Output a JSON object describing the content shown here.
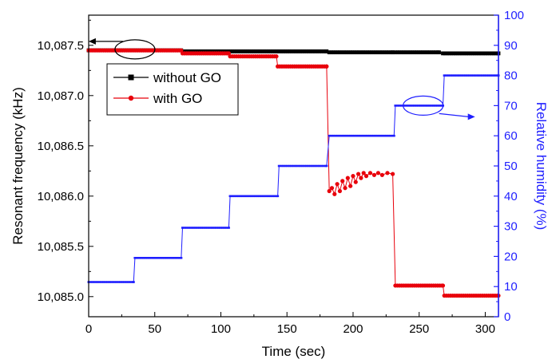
{
  "chart_data": {
    "type": "line",
    "xlabel": "Time (sec)",
    "ylabel_left": "Resonant frequency (kHz)",
    "ylabel_right": "Relative humidity (%)",
    "xlim": [
      0,
      310
    ],
    "ylim_left": [
      10084.8,
      10087.8
    ],
    "ylim_right": [
      0,
      100
    ],
    "x_ticks": [
      0,
      50,
      100,
      150,
      200,
      250,
      300
    ],
    "y_left_ticks": [
      {
        "v": 10085.0,
        "label": "10,085.0"
      },
      {
        "v": 10085.5,
        "label": "10,085.5"
      },
      {
        "v": 10086.0,
        "label": "10,086.0"
      },
      {
        "v": 10086.5,
        "label": "10,086.5"
      },
      {
        "v": 10087.0,
        "label": "10,087.0"
      },
      {
        "v": 10087.5,
        "label": "10,087.5"
      }
    ],
    "y_right_ticks": [
      0,
      10,
      20,
      30,
      40,
      50,
      60,
      70,
      80,
      90,
      100
    ],
    "legend_position": "upper-left",
    "series": [
      {
        "name": "without GO",
        "axis": "left",
        "color": "#000000",
        "marker": "square",
        "points": [
          [
            0,
            10087.45
          ],
          [
            70,
            10087.45
          ],
          [
            72,
            10087.44
          ],
          [
            180,
            10087.44
          ],
          [
            182,
            10087.43
          ],
          [
            230,
            10087.43
          ],
          [
            232,
            10087.43
          ],
          [
            265,
            10087.43
          ],
          [
            268,
            10087.42
          ],
          [
            310,
            10087.42
          ]
        ]
      },
      {
        "name": "with  GO",
        "axis": "left",
        "color": "#e8000b",
        "marker": "circle",
        "points": [
          [
            0,
            10087.45
          ],
          [
            70,
            10087.45
          ],
          [
            71,
            10087.42
          ],
          [
            106,
            10087.42
          ],
          [
            107,
            10087.39
          ],
          [
            142,
            10087.39
          ],
          [
            143,
            10087.29
          ],
          [
            180,
            10087.29
          ],
          [
            182,
            10086.05
          ],
          [
            184,
            10086.08
          ],
          [
            186,
            10086.02
          ],
          [
            188,
            10086.12
          ],
          [
            190,
            10086.05
          ],
          [
            192,
            10086.15
          ],
          [
            194,
            10086.08
          ],
          [
            196,
            10086.18
          ],
          [
            198,
            10086.1
          ],
          [
            200,
            10086.2
          ],
          [
            202,
            10086.14
          ],
          [
            204,
            10086.22
          ],
          [
            206,
            10086.18
          ],
          [
            208,
            10086.23
          ],
          [
            210,
            10086.2
          ],
          [
            213,
            10086.23
          ],
          [
            216,
            10086.21
          ],
          [
            219,
            10086.23
          ],
          [
            222,
            10086.21
          ],
          [
            226,
            10086.23
          ],
          [
            230,
            10086.22
          ],
          [
            232,
            10085.11
          ],
          [
            268,
            10085.11
          ],
          [
            269,
            10085.01
          ],
          [
            310,
            10085.01
          ]
        ]
      },
      {
        "name": "Relative humidity",
        "axis": "right",
        "color": "#1f1fff",
        "marker": "dash",
        "points": [
          [
            0,
            11.5
          ],
          [
            34,
            11.5
          ],
          [
            35,
            19.5
          ],
          [
            70,
            19.5
          ],
          [
            71,
            29.5
          ],
          [
            106,
            29.5
          ],
          [
            107,
            40
          ],
          [
            143,
            40
          ],
          [
            144,
            50
          ],
          [
            180,
            50
          ],
          [
            182,
            60
          ],
          [
            231,
            60
          ],
          [
            232,
            70
          ],
          [
            268,
            70
          ],
          [
            269,
            80
          ],
          [
            310,
            80
          ]
        ]
      }
    ],
    "annotations": [
      {
        "type": "ellipse-arrow",
        "series": "left",
        "x": 35,
        "y": 10087.46,
        "direction": "left"
      },
      {
        "type": "ellipse-arrow",
        "series": "right",
        "x": 253,
        "y": 70,
        "direction": "right"
      }
    ]
  }
}
